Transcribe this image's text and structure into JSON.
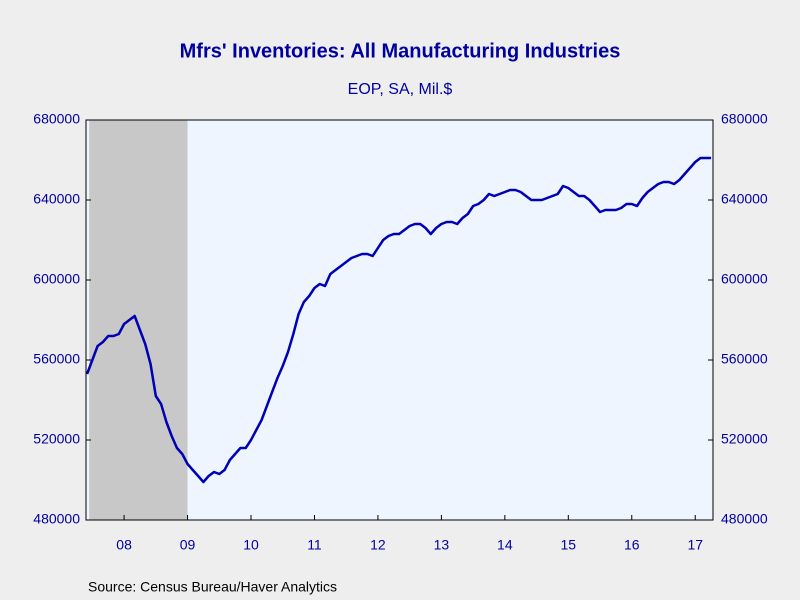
{
  "chart_data": {
    "type": "line",
    "title": "Mfrs' Inventories: All Manufacturing Industries",
    "subtitle": "EOP, SA, Mil.$",
    "source": "Source:  Census Bureau/Haver Analytics",
    "x": [
      2007.917,
      2008.0,
      2008.083,
      2008.167,
      2008.25,
      2008.333,
      2008.417,
      2008.5,
      2008.583,
      2008.667,
      2008.75,
      2008.833,
      2008.917,
      2009.0,
      2009.083,
      2009.167,
      2009.25,
      2009.333,
      2009.417,
      2009.5,
      2009.583,
      2009.667,
      2009.75,
      2009.833,
      2009.917,
      2010.0,
      2010.083,
      2010.167,
      2010.25,
      2010.333,
      2010.417,
      2010.5,
      2010.583,
      2010.667,
      2010.75,
      2010.833,
      2010.917,
      2011.0,
      2011.083,
      2011.167,
      2011.25,
      2011.333,
      2011.417,
      2011.5,
      2011.583,
      2011.667,
      2011.75,
      2011.833,
      2011.917,
      2012.0,
      2012.083,
      2012.167,
      2012.25,
      2012.333,
      2012.417,
      2012.5,
      2012.583,
      2012.667,
      2012.75,
      2012.833,
      2012.917,
      2013.0,
      2013.083,
      2013.167,
      2013.25,
      2013.333,
      2013.417,
      2013.5,
      2013.583,
      2013.667,
      2013.75,
      2013.833,
      2013.917,
      2014.0,
      2014.083,
      2014.167,
      2014.25,
      2014.333,
      2014.417,
      2014.5,
      2014.583,
      2014.667,
      2014.75,
      2014.833,
      2014.917,
      2015.0,
      2015.083,
      2015.167,
      2015.25,
      2015.333,
      2015.417,
      2015.5,
      2015.583,
      2015.667,
      2015.75,
      2015.833,
      2015.917,
      2016.0,
      2016.083,
      2016.167,
      2016.25,
      2016.333,
      2016.417,
      2016.5,
      2016.583,
      2016.667,
      2016.75,
      2016.833,
      2016.917,
      2017.0,
      2017.083,
      2017.167,
      2017.25,
      2017.333,
      2017.417,
      2017.5,
      2017.583,
      2017.667,
      2017.75
    ],
    "series": [
      {
        "name": "Mfrs' Inventories",
        "color": "#0000b4",
        "values": [
          553000,
          560000,
          567000,
          569000,
          572000,
          572000,
          573000,
          578000,
          580000,
          582000,
          575000,
          568000,
          558000,
          542000,
          538000,
          529000,
          522000,
          516000,
          513000,
          508000,
          505000,
          502000,
          499000,
          502000,
          504000,
          503000,
          505000,
          510000,
          513000,
          516000,
          516000,
          520000,
          525000,
          530000,
          537000,
          544000,
          551000,
          557000,
          564000,
          573000,
          583000,
          589000,
          592000,
          596000,
          598000,
          597000,
          603000,
          605000,
          607000,
          609000,
          611000,
          612000,
          613000,
          613000,
          612000,
          616000,
          620000,
          622000,
          623000,
          623000,
          625000,
          627000,
          628000,
          628000,
          626000,
          623000,
          626000,
          628000,
          629000,
          629000,
          628000,
          631000,
          633000,
          637000,
          638000,
          640000,
          643000,
          642000,
          643000,
          644000,
          645000,
          645000,
          644000,
          642000,
          640000,
          640000,
          640000,
          641000,
          642000,
          643000,
          647000,
          646000,
          644000,
          642000,
          642000,
          640000,
          637000,
          634000,
          635000,
          635000,
          635000,
          636000,
          638000,
          638000,
          637000,
          641000,
          644000,
          646000,
          648000,
          649000,
          649000,
          648000,
          650000,
          653000,
          656000,
          659000,
          661000,
          661000,
          661000
        ]
      }
    ],
    "recession": [
      2007.95,
      2009.5
    ],
    "xlim": [
      2007.9,
      2017.78
    ],
    "xticks": [
      {
        "value": 2008.5,
        "label": "08"
      },
      {
        "value": 2009.5,
        "label": "09"
      },
      {
        "value": 2010.5,
        "label": "10"
      },
      {
        "value": 2011.5,
        "label": "11"
      },
      {
        "value": 2012.5,
        "label": "12"
      },
      {
        "value": 2013.5,
        "label": "13"
      },
      {
        "value": 2014.5,
        "label": "14"
      },
      {
        "value": 2015.5,
        "label": "15"
      },
      {
        "value": 2016.5,
        "label": "16"
      },
      {
        "value": 2017.5,
        "label": "17"
      }
    ],
    "ylim": [
      480000,
      680000
    ],
    "yticks": [
      480000,
      520000,
      560000,
      600000,
      640000,
      680000
    ],
    "plot_color": "#eef5ff",
    "recession_color": "#c8c8c8"
  }
}
